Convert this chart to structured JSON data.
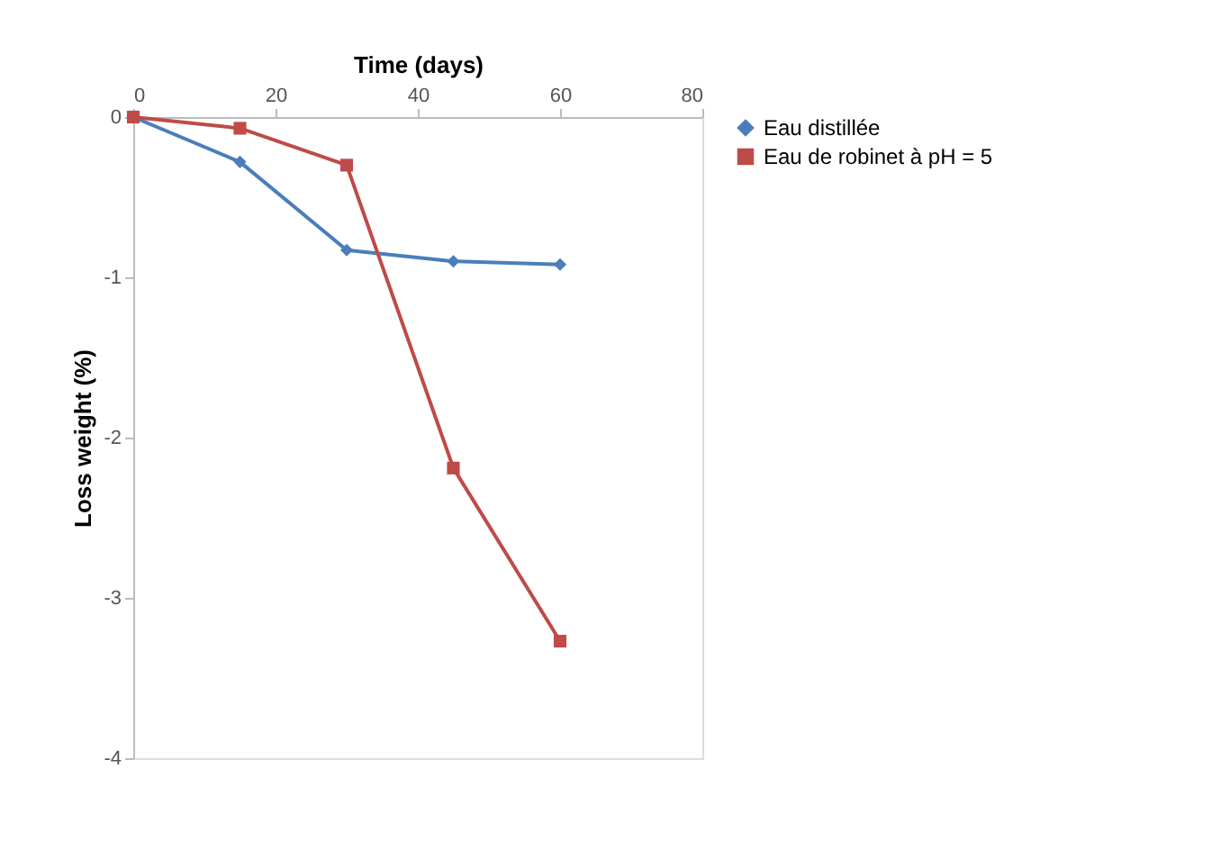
{
  "chart_data": {
    "type": "line",
    "xlabel": "Time (days)",
    "ylabel": "Loss weight (%)",
    "x": [
      0,
      15,
      30,
      45,
      60
    ],
    "series": [
      {
        "name": "Eau distillée",
        "color": "#4a7ebb",
        "marker": "diamond",
        "values": [
          0,
          -0.28,
          -0.83,
          -0.9,
          -0.92
        ]
      },
      {
        "name": "Eau de robinet à pH = 5",
        "color": "#be4b48",
        "marker": "square",
        "values": [
          0,
          -0.07,
          -0.3,
          -2.19,
          -3.27
        ]
      }
    ],
    "xlim": [
      0,
      80
    ],
    "xticks": [
      0,
      20,
      40,
      60,
      80
    ],
    "ylim": [
      -4,
      0
    ],
    "yticks": [
      0,
      -1,
      -2,
      -3,
      -4
    ],
    "grid": false,
    "legend": "right",
    "line_style": "solid"
  }
}
